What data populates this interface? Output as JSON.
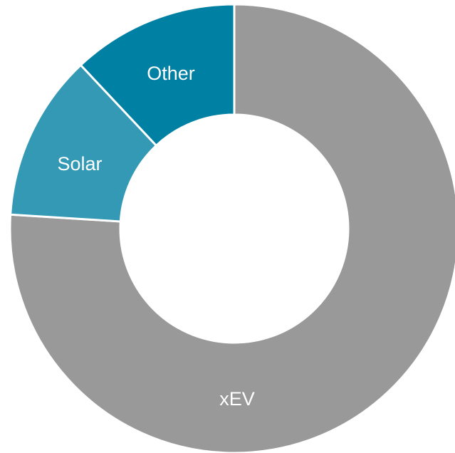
{
  "chart_data": {
    "type": "donut",
    "categories": [
      "xEV",
      "Solar",
      "Other"
    ],
    "values": [
      76,
      12,
      12
    ],
    "colors": [
      "#999999",
      "#3399b4",
      "#0080a3"
    ]
  }
}
